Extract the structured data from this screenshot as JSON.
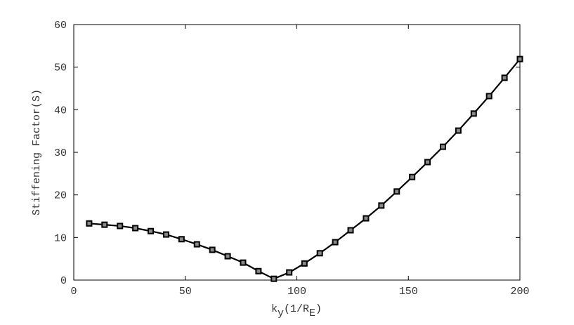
{
  "chart_data": {
    "type": "line",
    "ylabel": "Stiffening Factor(S)",
    "xlabel_parts": [
      "k",
      "y",
      "(1/R",
      "E",
      ")"
    ],
    "x": [
      6.9,
      13.8,
      20.7,
      27.6,
      34.5,
      41.4,
      48.3,
      55.2,
      62.1,
      69.0,
      75.9,
      82.8,
      89.7,
      96.6,
      103.4,
      110.3,
      117.2,
      124.1,
      131.0,
      137.9,
      144.8,
      151.7,
      158.6,
      165.5,
      172.4,
      179.3,
      186.2,
      193.1,
      200
    ],
    "values": [
      13.3,
      13.0,
      12.7,
      12.2,
      11.5,
      10.7,
      9.6,
      8.4,
      7.1,
      5.6,
      4.1,
      2.1,
      0.3,
      1.8,
      3.9,
      6.3,
      8.9,
      11.7,
      14.5,
      17.5,
      20.8,
      24.2,
      27.7,
      31.3,
      35.1,
      39.1,
      43.2,
      47.5,
      51.9
    ],
    "color": "#000000",
    "xlim": [
      0,
      200
    ],
    "xticks": [
      0,
      50,
      100,
      150,
      200
    ],
    "ylim": [
      0,
      60
    ],
    "yticks": [
      0,
      10,
      20,
      30,
      40,
      50,
      60
    ]
  }
}
